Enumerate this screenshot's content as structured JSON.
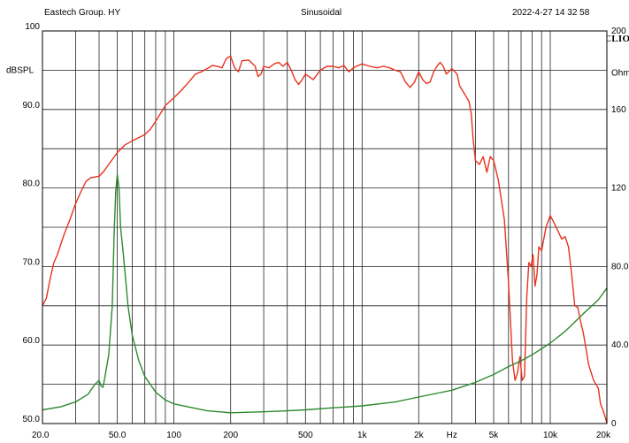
{
  "header": {
    "left": "Eastech Group. HY",
    "center": "Sinusoidal",
    "right": "2022-4-27 14 32 58",
    "brand": "CLIO"
  },
  "chart_data": {
    "type": "line",
    "x_scale": "log",
    "xlim": [
      20,
      20000
    ],
    "ylim_left": [
      50,
      100
    ],
    "ylim_right": [
      0,
      200
    ],
    "ylabel_left": "dBSPL",
    "ylabel_right": "Ohm",
    "xlabel": "Hz",
    "x_tick_labels": [
      {
        "value": 20,
        "label": "20.0"
      },
      {
        "value": 50,
        "label": "50.0"
      },
      {
        "value": 100,
        "label": "100"
      },
      {
        "value": 200,
        "label": "200"
      },
      {
        "value": 500,
        "label": "500"
      },
      {
        "value": 1000,
        "label": "1k"
      },
      {
        "value": 2000,
        "label": "2k"
      },
      {
        "value": 5000,
        "label": "5k"
      },
      {
        "value": 10000,
        "label": "10k"
      },
      {
        "value": 20000,
        "label": "20k"
      }
    ],
    "y_left_tick_labels": [
      {
        "value": 100,
        "label": "100"
      },
      {
        "value": 90,
        "label": "90.0"
      },
      {
        "value": 80,
        "label": "80.0"
      },
      {
        "value": 70,
        "label": "70.0"
      },
      {
        "value": 60,
        "label": "60.0"
      },
      {
        "value": 50,
        "label": "50.0"
      }
    ],
    "y_right_tick_labels": [
      {
        "value": 200,
        "label": "200"
      },
      {
        "value": 160,
        "label": "160"
      },
      {
        "value": 120,
        "label": "120"
      },
      {
        "value": 80,
        "label": "80.0"
      },
      {
        "value": 40,
        "label": "40.0"
      },
      {
        "value": 0,
        "label": "0"
      }
    ],
    "grid": true,
    "series": [
      {
        "axis": "left",
        "color": "#e8321e",
        "points": [
          [
            20,
            65.0
          ],
          [
            21,
            66.0
          ],
          [
            22,
            68.5
          ],
          [
            23,
            70.5
          ],
          [
            24,
            71.5
          ],
          [
            26,
            74.0
          ],
          [
            28,
            76.0
          ],
          [
            30,
            78.0
          ],
          [
            32,
            79.5
          ],
          [
            34,
            80.8
          ],
          [
            36,
            81.3
          ],
          [
            40,
            81.5
          ],
          [
            42,
            82.0
          ],
          [
            45,
            83.0
          ],
          [
            50,
            84.5
          ],
          [
            55,
            85.5
          ],
          [
            60,
            86.0
          ],
          [
            70,
            86.8
          ],
          [
            75,
            87.5
          ],
          [
            80,
            88.5
          ],
          [
            90,
            90.5
          ],
          [
            100,
            91.5
          ],
          [
            110,
            92.5
          ],
          [
            120,
            93.5
          ],
          [
            130,
            94.5
          ],
          [
            140,
            94.8
          ],
          [
            150,
            95.2
          ],
          [
            160,
            95.6
          ],
          [
            170,
            95.5
          ],
          [
            180,
            95.3
          ],
          [
            190,
            96.5
          ],
          [
            200,
            96.8
          ],
          [
            210,
            95.3
          ],
          [
            220,
            94.8
          ],
          [
            230,
            96.2
          ],
          [
            250,
            96.3
          ],
          [
            270,
            95.5
          ],
          [
            280,
            94.2
          ],
          [
            290,
            94.5
          ],
          [
            300,
            95.5
          ],
          [
            320,
            95.3
          ],
          [
            340,
            95.8
          ],
          [
            360,
            96.0
          ],
          [
            380,
            95.5
          ],
          [
            400,
            96.0
          ],
          [
            420,
            95.0
          ],
          [
            440,
            93.8
          ],
          [
            460,
            93.2
          ],
          [
            480,
            93.8
          ],
          [
            500,
            94.5
          ],
          [
            550,
            93.8
          ],
          [
            600,
            95.0
          ],
          [
            650,
            95.5
          ],
          [
            700,
            95.5
          ],
          [
            750,
            95.3
          ],
          [
            800,
            95.6
          ],
          [
            850,
            94.8
          ],
          [
            900,
            95.3
          ],
          [
            950,
            95.6
          ],
          [
            1000,
            95.8
          ],
          [
            1100,
            95.5
          ],
          [
            1200,
            95.3
          ],
          [
            1300,
            95.5
          ],
          [
            1400,
            95.3
          ],
          [
            1500,
            95.0
          ],
          [
            1600,
            94.8
          ],
          [
            1700,
            93.5
          ],
          [
            1800,
            92.8
          ],
          [
            1900,
            93.5
          ],
          [
            2000,
            94.8
          ],
          [
            2100,
            93.8
          ],
          [
            2200,
            93.3
          ],
          [
            2300,
            93.5
          ],
          [
            2400,
            94.8
          ],
          [
            2500,
            95.5
          ],
          [
            2600,
            96.0
          ],
          [
            2700,
            95.5
          ],
          [
            2800,
            94.5
          ],
          [
            3000,
            95.2
          ],
          [
            3200,
            94.5
          ],
          [
            3300,
            93.0
          ],
          [
            3500,
            92.0
          ],
          [
            3700,
            91.0
          ],
          [
            3800,
            89.5
          ],
          [
            3900,
            86.0
          ],
          [
            4000,
            83.5
          ],
          [
            4200,
            83.0
          ],
          [
            4400,
            84.0
          ],
          [
            4600,
            82.0
          ],
          [
            4800,
            84.0
          ],
          [
            5000,
            83.5
          ],
          [
            5300,
            81.0
          ],
          [
            5700,
            76.0
          ],
          [
            6000,
            68.0
          ],
          [
            6300,
            58.0
          ],
          [
            6500,
            55.5
          ],
          [
            6700,
            56.5
          ],
          [
            6900,
            58.5
          ],
          [
            7100,
            55.5
          ],
          [
            7300,
            56.0
          ],
          [
            7500,
            66.0
          ],
          [
            7700,
            70.5
          ],
          [
            7900,
            70.0
          ],
          [
            8100,
            71.5
          ],
          [
            8300,
            67.5
          ],
          [
            8500,
            69.0
          ],
          [
            8700,
            72.5
          ],
          [
            9000,
            72.0
          ],
          [
            9500,
            75.0
          ],
          [
            10000,
            76.5
          ],
          [
            10500,
            75.5
          ],
          [
            11000,
            74.5
          ],
          [
            11500,
            73.5
          ],
          [
            12000,
            73.8
          ],
          [
            12500,
            72.5
          ],
          [
            13000,
            69.0
          ],
          [
            13500,
            65.0
          ],
          [
            14000,
            64.8
          ],
          [
            14500,
            63.0
          ],
          [
            15000,
            61.5
          ],
          [
            15500,
            59.5
          ],
          [
            16000,
            57.5
          ],
          [
            17000,
            55.5
          ],
          [
            18000,
            54.5
          ],
          [
            18500,
            52.5
          ],
          [
            19000,
            51.8
          ],
          [
            19500,
            51.0
          ],
          [
            20000,
            50.0
          ]
        ]
      },
      {
        "axis": "right",
        "color": "#2d8a2d",
        "points": [
          [
            20,
            7.0
          ],
          [
            25,
            8.5
          ],
          [
            30,
            11.0
          ],
          [
            35,
            15.0
          ],
          [
            38,
            20.0
          ],
          [
            40,
            22.0
          ],
          [
            41,
            19.0
          ],
          [
            42,
            18.5
          ],
          [
            43,
            24.0
          ],
          [
            45,
            35.0
          ],
          [
            47,
            60.0
          ],
          [
            48,
            95.0
          ],
          [
            49,
            118.0
          ],
          [
            50,
            127.0
          ],
          [
            51,
            120.0
          ],
          [
            52,
            100.0
          ],
          [
            54,
            85.0
          ],
          [
            57,
            60.0
          ],
          [
            60,
            45.0
          ],
          [
            65,
            32.0
          ],
          [
            70,
            24.0
          ],
          [
            80,
            16.0
          ],
          [
            90,
            12.0
          ],
          [
            100,
            10.0
          ],
          [
            150,
            6.5
          ],
          [
            200,
            5.5
          ],
          [
            300,
            6.0
          ],
          [
            400,
            6.5
          ],
          [
            500,
            7.0
          ],
          [
            700,
            8.0
          ],
          [
            1000,
            9.0
          ],
          [
            1500,
            11.0
          ],
          [
            2000,
            13.5
          ],
          [
            3000,
            17.0
          ],
          [
            4000,
            21.0
          ],
          [
            5000,
            25.0
          ],
          [
            6000,
            29.0
          ],
          [
            7000,
            32.0
          ],
          [
            8000,
            35.0
          ],
          [
            10000,
            41.0
          ],
          [
            12000,
            47.0
          ],
          [
            15000,
            56.0
          ],
          [
            18000,
            63.0
          ],
          [
            20000,
            69.0
          ]
        ]
      }
    ]
  }
}
